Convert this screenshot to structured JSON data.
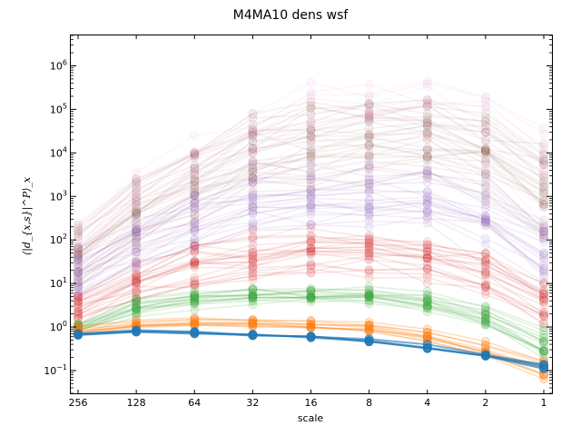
{
  "chart_data": {
    "type": "line",
    "title": "M4MA10 dens wsf",
    "xlabel": "scale",
    "ylabel": "⟨|d_{x,s}|^P⟩_x",
    "x_categories": [
      "256",
      "128",
      "64",
      "32",
      "16",
      "8",
      "4",
      "2",
      "1"
    ],
    "y_scale": "log",
    "ylim": [
      0.03,
      5000000
    ],
    "y_ticks": [
      {
        "value": 0.1,
        "mantissa": "10",
        "exp": "−1"
      },
      {
        "value": 1,
        "mantissa": "10",
        "exp": "0"
      },
      {
        "value": 10,
        "mantissa": "10",
        "exp": "1"
      },
      {
        "value": 100,
        "mantissa": "10",
        "exp": "2"
      },
      {
        "value": 1000,
        "mantissa": "10",
        "exp": "3"
      },
      {
        "value": 10000,
        "mantissa": "10",
        "exp": "4"
      },
      {
        "value": 100000,
        "mantissa": "10",
        "exp": "5"
      },
      {
        "value": 1000000,
        "mantissa": "10",
        "exp": "6"
      }
    ],
    "grid": false,
    "groups": [
      {
        "color": "#1f77b4",
        "center": [
          0.65,
          0.75,
          0.7,
          0.62,
          0.55,
          0.45,
          0.32,
          0.2,
          0.11
        ],
        "spread": [
          0.05,
          0.05,
          0.05,
          0.05,
          0.05,
          0.05,
          0.06,
          0.07,
          0.1
        ],
        "members": 4,
        "opacity": 0.6,
        "bold": true
      },
      {
        "color": "#ff7f0e",
        "center": [
          0.85,
          1.2,
          1.3,
          1.25,
          1.15,
          1.0,
          0.65,
          0.3,
          0.12
        ],
        "spread": [
          0.1,
          0.08,
          0.08,
          0.08,
          0.08,
          0.1,
          0.12,
          0.15,
          0.18
        ],
        "members": 10,
        "opacity": 0.25,
        "bold": false
      },
      {
        "color": "#2ca02c",
        "center": [
          0.95,
          3.0,
          4.5,
          5.5,
          5.5,
          5.2,
          4.0,
          1.8,
          0.4
        ],
        "spread": [
          0.15,
          0.2,
          0.2,
          0.2,
          0.2,
          0.22,
          0.25,
          0.3,
          0.4
        ],
        "members": 16,
        "opacity": 0.14,
        "bold": false
      },
      {
        "color": "#d62728",
        "center": [
          3.0,
          12.0,
          28.0,
          45.0,
          60.0,
          62.0,
          45.0,
          20.0,
          4.0
        ],
        "spread": [
          0.35,
          0.4,
          0.45,
          0.45,
          0.45,
          0.45,
          0.45,
          0.5,
          0.55
        ],
        "members": 22,
        "opacity": 0.11,
        "bold": false
      },
      {
        "color": "#9467bd",
        "center": [
          12.0,
          60.0,
          220.0,
          500.0,
          700.0,
          900.0,
          800.0,
          300.0,
          40.0
        ],
        "spread": [
          0.45,
          0.55,
          0.6,
          0.6,
          0.6,
          0.6,
          0.6,
          0.65,
          0.7
        ],
        "members": 22,
        "opacity": 0.11,
        "bold": false
      },
      {
        "color": "#8c564b",
        "center": [
          40.0,
          350.0,
          1500.0,
          7000.0,
          12000.0,
          20000.0,
          20000.0,
          8000.0,
          1000.0
        ],
        "spread": [
          0.55,
          0.6,
          0.65,
          0.7,
          0.7,
          0.7,
          0.75,
          0.75,
          0.85
        ],
        "members": 28,
        "opacity": 0.09,
        "bold": false
      },
      {
        "color": "#e377c2",
        "center": [
          60.0,
          800.0,
          4000.0,
          20000.0,
          60000.0,
          80000.0,
          100000.0,
          40000.0,
          5000.0
        ],
        "spread": [
          0.5,
          0.6,
          0.7,
          0.7,
          0.75,
          0.75,
          0.75,
          0.8,
          0.9
        ],
        "members": 14,
        "opacity": 0.07,
        "bold": false
      }
    ]
  }
}
